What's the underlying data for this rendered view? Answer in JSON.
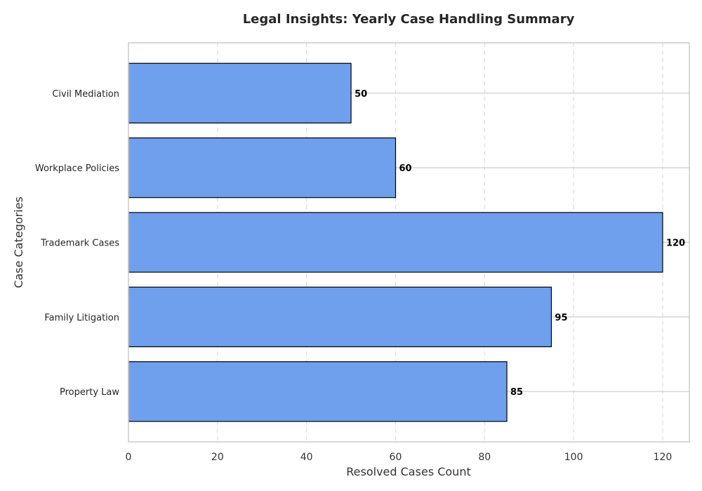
{
  "chart_data": {
    "type": "bar",
    "orientation": "horizontal",
    "title": "Legal Insights: Yearly Case Handling Summary",
    "xlabel": "Resolved Cases Count",
    "ylabel": "Case Categories",
    "categories": [
      "Civil Mediation",
      "Workplace Policies",
      "Trademark Cases",
      "Family Litigation",
      "Property Law"
    ],
    "values": [
      50,
      60,
      120,
      95,
      85
    ],
    "xlim": [
      0,
      126
    ],
    "xticks": [
      0,
      20,
      40,
      60,
      80,
      100,
      120
    ],
    "grid": true,
    "bar_color": "#6fa0ee",
    "edge_color": "#000000"
  }
}
